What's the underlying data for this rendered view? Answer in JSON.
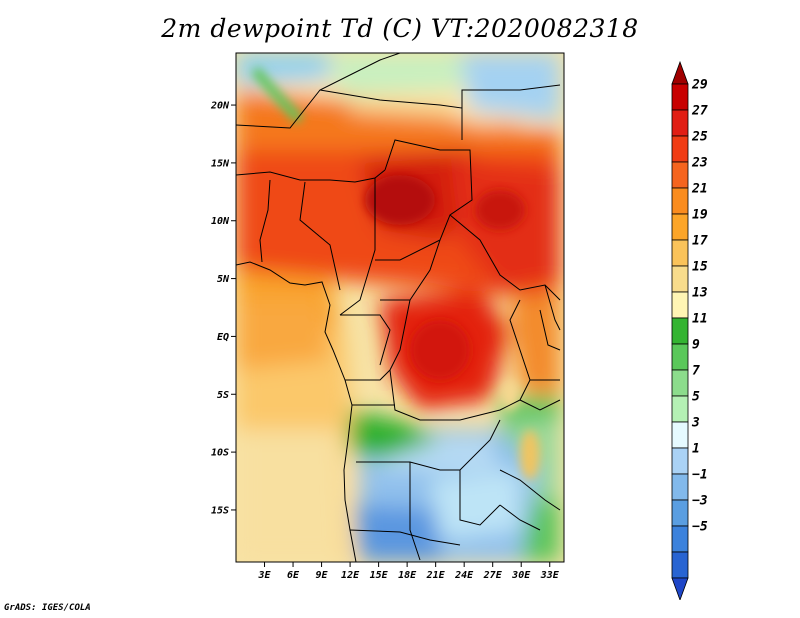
{
  "title": "2m dewpoint Td (C) VT:2020082318",
  "credit": "GrADS: IGES/COLA",
  "chart_data": {
    "type": "heatmap",
    "variable": "2m dewpoint Td (C)",
    "valid_time": "2020082318",
    "lat_range": [
      -19.5,
      24.5
    ],
    "lon_range": [
      0,
      34.5
    ],
    "y_ticks": [
      {
        "value": 20,
        "label": "20N"
      },
      {
        "value": 15,
        "label": "15N"
      },
      {
        "value": 10,
        "label": "10N"
      },
      {
        "value": 5,
        "label": "5N"
      },
      {
        "value": 0,
        "label": "EQ"
      },
      {
        "value": -5,
        "label": "5S"
      },
      {
        "value": -10,
        "label": "10S"
      },
      {
        "value": -15,
        "label": "15S"
      }
    ],
    "x_ticks": [
      {
        "value": 3,
        "label": "3E"
      },
      {
        "value": 6,
        "label": "6E"
      },
      {
        "value": 9,
        "label": "9E"
      },
      {
        "value": 12,
        "label": "12E"
      },
      {
        "value": 15,
        "label": "15E"
      },
      {
        "value": 18,
        "label": "18E"
      },
      {
        "value": 21,
        "label": "21E"
      },
      {
        "value": 24,
        "label": "24E"
      },
      {
        "value": 27,
        "label": "27E"
      },
      {
        "value": 30,
        "label": "30E"
      },
      {
        "value": 33,
        "label": "33E"
      }
    ],
    "colorbar": {
      "labels": [
        "29",
        "27",
        "25",
        "23",
        "21",
        "19",
        "17",
        "15",
        "13",
        "11",
        "9",
        "7",
        "5",
        "3",
        "1",
        "−1",
        "−3",
        "−5"
      ],
      "colors": [
        "#a00000",
        "#c80000",
        "#e11e14",
        "#f03c14",
        "#f5641e",
        "#fa8c1e",
        "#fca528",
        "#fac35a",
        "#f8dc8c",
        "#fff5b4",
        "#34b432",
        "#5ac85a",
        "#8cdc8c",
        "#b4f0b4",
        "#e6faff",
        "#aad2f5",
        "#82b9eb",
        "#5a9ee1",
        "#3c82dc",
        "#2864d2",
        "#1e46c8"
      ]
    }
  }
}
